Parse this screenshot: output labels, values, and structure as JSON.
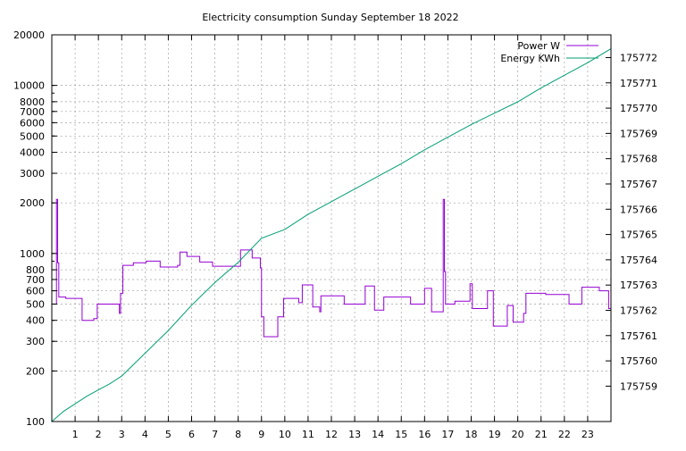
{
  "chart_data": {
    "type": "line",
    "title": "Electricity consumption Sunday September 18 2022",
    "x_ticks": [
      "1",
      "2",
      "3",
      "4",
      "5",
      "6",
      "7",
      "8",
      "9",
      "10",
      "11",
      "12",
      "13",
      "14",
      "15",
      "16",
      "17",
      "18",
      "19",
      "20",
      "21",
      "22",
      "23"
    ],
    "xlim": [
      0,
      24
    ],
    "y_left": {
      "scale": "log",
      "lim": [
        100,
        20000
      ],
      "ticks": [
        "100",
        "200",
        "300",
        "400",
        "500",
        "600",
        "700",
        "800",
        "1000",
        "2000",
        "3000",
        "4000",
        "5000",
        "6000",
        "7000",
        "8000",
        "10000",
        "20000"
      ]
    },
    "y_right": {
      "scale": "linear",
      "lim": [
        175757.6,
        175772.9
      ],
      "ticks": [
        "175759",
        "175760",
        "175761",
        "175762",
        "175763",
        "175764",
        "175765",
        "175766",
        "175767",
        "175768",
        "175769",
        "175770",
        "175771",
        "175772"
      ]
    },
    "grid": true,
    "legend_position": "top-right",
    "series": [
      {
        "name": "Power W",
        "axis": "left",
        "color": "#9400d3",
        "style": "step",
        "points": [
          [
            0,
            500
          ],
          [
            0.2,
            500
          ],
          [
            0.2,
            2100
          ],
          [
            0.25,
            2100
          ],
          [
            0.25,
            880
          ],
          [
            0.3,
            880
          ],
          [
            0.3,
            550
          ],
          [
            0.6,
            550
          ],
          [
            0.6,
            540
          ],
          [
            1.3,
            540
          ],
          [
            1.3,
            400
          ],
          [
            1.8,
            400
          ],
          [
            1.8,
            410
          ],
          [
            1.95,
            410
          ],
          [
            1.95,
            500
          ],
          [
            2.9,
            500
          ],
          [
            2.9,
            440
          ],
          [
            2.95,
            440
          ],
          [
            2.95,
            580
          ],
          [
            3.05,
            580
          ],
          [
            3.05,
            850
          ],
          [
            3.5,
            850
          ],
          [
            3.5,
            880
          ],
          [
            4.05,
            880
          ],
          [
            4.05,
            900
          ],
          [
            4.65,
            900
          ],
          [
            4.65,
            830
          ],
          [
            5.4,
            830
          ],
          [
            5.4,
            850
          ],
          [
            5.5,
            850
          ],
          [
            5.5,
            1020
          ],
          [
            5.8,
            1020
          ],
          [
            5.8,
            960
          ],
          [
            6.35,
            960
          ],
          [
            6.35,
            890
          ],
          [
            6.9,
            890
          ],
          [
            6.9,
            840
          ],
          [
            8.1,
            840
          ],
          [
            8.1,
            1050
          ],
          [
            8.6,
            1050
          ],
          [
            8.6,
            940
          ],
          [
            8.95,
            940
          ],
          [
            8.95,
            820
          ],
          [
            9.0,
            820
          ],
          [
            9.0,
            420
          ],
          [
            9.1,
            420
          ],
          [
            9.1,
            320
          ],
          [
            9.7,
            320
          ],
          [
            9.7,
            420
          ],
          [
            9.95,
            420
          ],
          [
            9.95,
            540
          ],
          [
            10.6,
            540
          ],
          [
            10.6,
            510
          ],
          [
            10.75,
            510
          ],
          [
            10.75,
            650
          ],
          [
            11.2,
            650
          ],
          [
            11.2,
            480
          ],
          [
            11.5,
            480
          ],
          [
            11.5,
            450
          ],
          [
            11.55,
            450
          ],
          [
            11.55,
            560
          ],
          [
            12.55,
            560
          ],
          [
            12.55,
            500
          ],
          [
            13.45,
            500
          ],
          [
            13.45,
            640
          ],
          [
            13.85,
            640
          ],
          [
            13.85,
            460
          ],
          [
            14.25,
            460
          ],
          [
            14.25,
            550
          ],
          [
            15.4,
            550
          ],
          [
            15.4,
            500
          ],
          [
            16.0,
            500
          ],
          [
            16.0,
            620
          ],
          [
            16.3,
            620
          ],
          [
            16.3,
            450
          ],
          [
            16.8,
            450
          ],
          [
            16.8,
            2100
          ],
          [
            16.85,
            2100
          ],
          [
            16.85,
            780
          ],
          [
            16.9,
            780
          ],
          [
            16.9,
            500
          ],
          [
            17.3,
            500
          ],
          [
            17.3,
            520
          ],
          [
            17.95,
            520
          ],
          [
            17.95,
            660
          ],
          [
            18.05,
            660
          ],
          [
            18.05,
            470
          ],
          [
            18.7,
            470
          ],
          [
            18.7,
            600
          ],
          [
            18.95,
            600
          ],
          [
            18.95,
            370
          ],
          [
            19.55,
            370
          ],
          [
            19.55,
            490
          ],
          [
            19.8,
            490
          ],
          [
            19.8,
            390
          ],
          [
            20.25,
            390
          ],
          [
            20.25,
            440
          ],
          [
            20.35,
            440
          ],
          [
            20.35,
            580
          ],
          [
            21.2,
            580
          ],
          [
            21.2,
            570
          ],
          [
            22.2,
            570
          ],
          [
            22.2,
            500
          ],
          [
            22.75,
            500
          ],
          [
            22.75,
            630
          ],
          [
            23.5,
            630
          ],
          [
            23.5,
            600
          ],
          [
            23.9,
            600
          ],
          [
            23.9,
            470
          ],
          [
            24,
            470
          ]
        ]
      },
      {
        "name": "Energy KWh",
        "axis": "right",
        "color": "#009e73",
        "style": "line",
        "points": [
          [
            0,
            175757.6
          ],
          [
            0.5,
            175758.0
          ],
          [
            1.0,
            175758.3
          ],
          [
            1.5,
            175758.6
          ],
          [
            2.0,
            175758.85
          ],
          [
            2.5,
            175759.1
          ],
          [
            3.0,
            175759.4
          ],
          [
            4.0,
            175760.3
          ],
          [
            5.0,
            175761.2
          ],
          [
            6.0,
            175762.2
          ],
          [
            7.0,
            175763.1
          ],
          [
            8.0,
            175763.9
          ],
          [
            9.0,
            175764.85
          ],
          [
            10.0,
            175765.2
          ],
          [
            11.0,
            175765.8
          ],
          [
            12.0,
            175766.3
          ],
          [
            13.0,
            175766.8
          ],
          [
            14.0,
            175767.3
          ],
          [
            15.0,
            175767.8
          ],
          [
            16.0,
            175768.35
          ],
          [
            17.0,
            175768.85
          ],
          [
            18.0,
            175769.35
          ],
          [
            19.0,
            175769.8
          ],
          [
            20.0,
            175770.25
          ],
          [
            21.0,
            175770.8
          ],
          [
            22.0,
            175771.3
          ],
          [
            23.0,
            175771.8
          ],
          [
            24.0,
            175772.35
          ]
        ]
      }
    ]
  }
}
